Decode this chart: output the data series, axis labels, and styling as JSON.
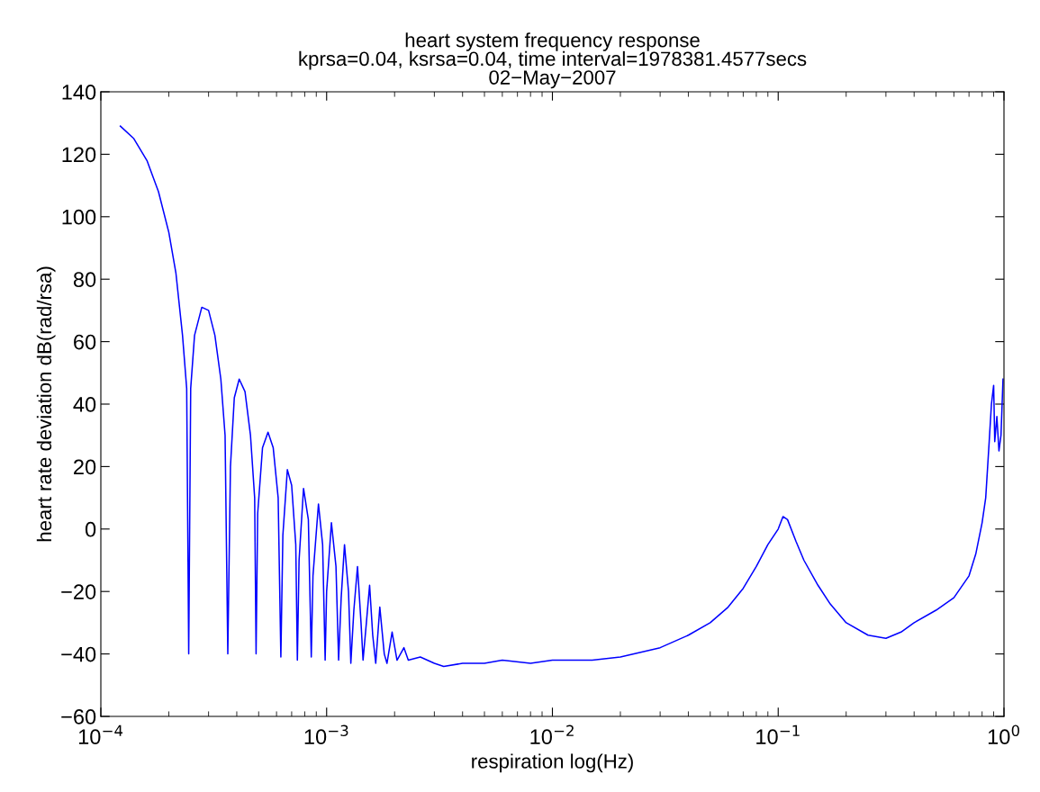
{
  "chart_data": {
    "type": "line",
    "title": "heart system frequency response\nkprsa=0.04, ksrsa=0.04, time interval=1978381.4577secs\n02−May−2007",
    "xlabel": "respiration log(Hz)",
    "ylabel": "heart rate deviation dB(rad/rsa)",
    "log": "x",
    "xlim": [
      0.0001,
      1
    ],
    "xticks": [
      {
        "value": 0.0001,
        "label": "10$^{−4}$"
      },
      {
        "value": 0.001,
        "label": "10$^{−3}$"
      },
      {
        "value": 0.01,
        "label": "10$^{−2}$"
      },
      {
        "value": 0.1,
        "label": "10$^{−1}$"
      },
      {
        "value": 1,
        "label": "10$^{0}$"
      }
    ],
    "ylim": [
      -60,
      140
    ],
    "yticks": [
      -60,
      -40,
      -20,
      0,
      20,
      40,
      60,
      80,
      100,
      120,
      140
    ],
    "grid": false,
    "legend": false,
    "marker": "none",
    "line_style": "solid",
    "series": [
      {
        "color": "#0000ff",
        "x": [
          0.000122,
          0.00014,
          0.00016,
          0.00018,
          0.0002,
          0.000215,
          0.00023,
          0.00024,
          0.000245,
          0.00025,
          0.00026,
          0.00028,
          0.0003,
          0.00032,
          0.00034,
          0.000355,
          0.000365,
          0.000375,
          0.00039,
          0.00041,
          0.000435,
          0.00046,
          0.00048,
          0.000487,
          0.000495,
          0.00052,
          0.00055,
          0.00058,
          0.00061,
          0.000627,
          0.00064,
          0.00067,
          0.0007,
          0.00073,
          0.000742,
          0.000755,
          0.00079,
          0.00083,
          0.000855,
          0.00087,
          0.00092,
          0.00096,
          0.000985,
          0.001,
          0.00105,
          0.0011,
          0.00113,
          0.00116,
          0.0012,
          0.00125,
          0.00128,
          0.00132,
          0.00137,
          0.00142,
          0.00145,
          0.0015,
          0.00155,
          0.0016,
          0.00165,
          0.00172,
          0.0018,
          0.00185,
          0.00195,
          0.00205,
          0.0022,
          0.0023,
          0.0026,
          0.003,
          0.0033,
          0.004,
          0.005,
          0.006,
          0.008,
          0.01,
          0.015,
          0.02,
          0.03,
          0.04,
          0.05,
          0.06,
          0.07,
          0.08,
          0.09,
          0.1,
          0.105,
          0.11,
          0.12,
          0.13,
          0.15,
          0.17,
          0.2,
          0.25,
          0.3,
          0.35,
          0.4,
          0.5,
          0.6,
          0.7,
          0.75,
          0.8,
          0.83,
          0.86,
          0.88,
          0.9,
          0.91,
          0.93,
          0.95,
          0.97,
          0.99
        ],
        "values": [
          129,
          125,
          118,
          108,
          95,
          82,
          62,
          45,
          -40,
          45,
          62,
          71,
          70,
          62,
          48,
          30,
          -40,
          20,
          42,
          48,
          44,
          30,
          10,
          -40,
          5,
          26,
          31,
          26,
          10,
          -41,
          -2,
          19,
          14,
          -5,
          -42,
          -10,
          13,
          3,
          -41,
          -15,
          8,
          -5,
          -42,
          -20,
          2,
          -12,
          -42,
          -22,
          -5,
          -20,
          -43,
          -26,
          -12,
          -30,
          -42,
          -30,
          -18,
          -34,
          -43,
          -25,
          -40,
          -43,
          -33,
          -42,
          -38,
          -42,
          -41,
          -43,
          -44,
          -43,
          -43,
          -42,
          -43,
          -42,
          -42,
          -41,
          -38,
          -34,
          -30,
          -25,
          -19,
          -12,
          -5,
          0,
          4,
          3,
          -4,
          -10,
          -18,
          -24,
          -30,
          -34,
          -35,
          -33,
          -30,
          -26,
          -22,
          -15,
          -8,
          2,
          10,
          28,
          40,
          46,
          28,
          36,
          25,
          30,
          48
        ]
      }
    ]
  }
}
